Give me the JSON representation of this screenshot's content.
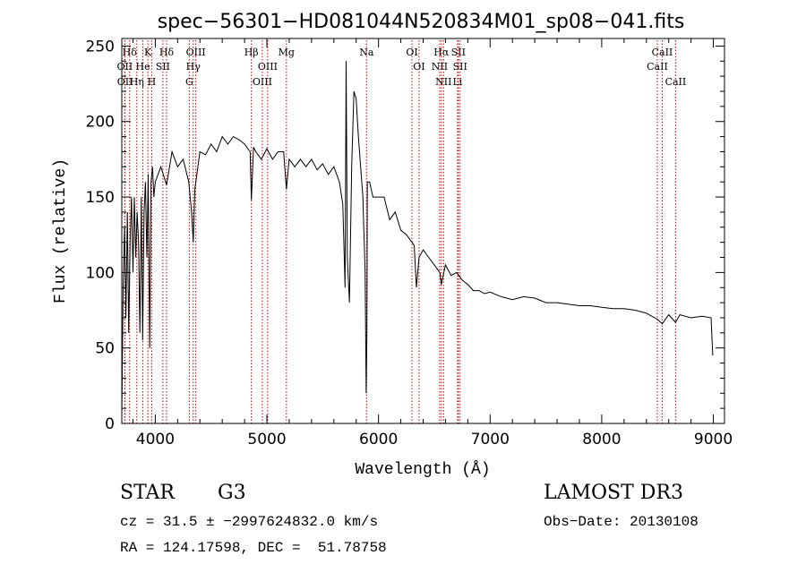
{
  "chart_data": {
    "type": "line",
    "title": "spec−56301−HD081044N520834M01_sp08−041.fits",
    "xlabel": "Wavelength (Å)",
    "ylabel": "Flux (relative)",
    "xlim": [
      3700,
      9100
    ],
    "ylim": [
      0,
      255
    ],
    "x_ticks": [
      4000,
      5000,
      6000,
      7000,
      8000,
      9000
    ],
    "y_ticks": [
      0,
      50,
      100,
      150,
      200,
      250
    ],
    "grid": false,
    "line_color": "#000000",
    "marker_color": "#cc0000",
    "series": [
      {
        "x": [
          3700,
          3712,
          3725,
          3737,
          3750,
          3762,
          3775,
          3787,
          3800,
          3812,
          3825,
          3837,
          3850,
          3862,
          3875,
          3887,
          3900,
          3912,
          3925,
          3937,
          3950,
          3962,
          3975,
          3987,
          4000,
          4050,
          4101,
          4150,
          4200,
          4250,
          4300,
          4325,
          4340,
          4355,
          4400,
          4450,
          4500,
          4550,
          4600,
          4650,
          4700,
          4750,
          4800,
          4850,
          4861,
          4880,
          4900,
          4950,
          5000,
          5050,
          5100,
          5150,
          5175,
          5200,
          5250,
          5300,
          5350,
          5400,
          5450,
          5500,
          5550,
          5600,
          5650,
          5680,
          5700,
          5710,
          5720,
          5740,
          5760,
          5780,
          5800,
          5820,
          5840,
          5860,
          5880,
          5890,
          5896,
          5900,
          5920,
          5950,
          6000,
          6050,
          6100,
          6150,
          6200,
          6250,
          6300,
          6320,
          6340,
          6363,
          6400,
          6450,
          6500,
          6550,
          6563,
          6600,
          6650,
          6700,
          6750,
          6800,
          6850,
          6900,
          6950,
          7000,
          7100,
          7200,
          7300,
          7400,
          7500,
          7600,
          7700,
          7800,
          7900,
          8000,
          8100,
          8200,
          8300,
          8400,
          8498,
          8542,
          8600,
          8662,
          8700,
          8800,
          8900,
          8980,
          8995
        ],
        "y": [
          5,
          90,
          130,
          70,
          140,
          60,
          120,
          150,
          100,
          150,
          110,
          140,
          120,
          60,
          150,
          55,
          140,
          160,
          110,
          165,
          50,
          160,
          170,
          150,
          160,
          170,
          158,
          180,
          170,
          175,
          160,
          140,
          120,
          155,
          180,
          178,
          185,
          180,
          190,
          185,
          190,
          188,
          185,
          180,
          148,
          183,
          180,
          175,
          182,
          175,
          180,
          180,
          155,
          175,
          170,
          175,
          170,
          175,
          168,
          172,
          165,
          170,
          160,
          145,
          90,
          240,
          110,
          80,
          170,
          220,
          215,
          190,
          170,
          150,
          100,
          20,
          60,
          160,
          160,
          150,
          150,
          150,
          135,
          140,
          128,
          125,
          120,
          118,
          90,
          110,
          115,
          110,
          105,
          100,
          92,
          105,
          98,
          100,
          95,
          92,
          88,
          88,
          86,
          87,
          84,
          82,
          84,
          83,
          80,
          80,
          79,
          78,
          78,
          77,
          76,
          76,
          75,
          73,
          69,
          66,
          72,
          67,
          72,
          70,
          71,
          70,
          45
        ]
      }
    ],
    "lines": [
      {
        "label": "Hδ",
        "x": 3770
      },
      {
        "label": "OII",
        "x": 3727
      },
      {
        "label": "OII",
        "x": 3729
      },
      {
        "label": "K",
        "x": 3934
      },
      {
        "label": "He",
        "x": 3889
      },
      {
        "label": "Hη",
        "x": 3835
      },
      {
        "label": "H",
        "x": 3968
      },
      {
        "label": "SII",
        "x": 4068
      },
      {
        "label": "Hδ",
        "x": 4101
      },
      {
        "label": "OIII",
        "x": 4363
      },
      {
        "label": "Hγ",
        "x": 4340
      },
      {
        "label": "G",
        "x": 4305
      },
      {
        "label": "Hβ",
        "x": 4861
      },
      {
        "label": "OIII",
        "x": 5007
      },
      {
        "label": "OIII",
        "x": 4959
      },
      {
        "label": "Mg",
        "x": 5175
      },
      {
        "label": "Na",
        "x": 5893
      },
      {
        "label": "OI",
        "x": 6300
      },
      {
        "label": "OI",
        "x": 6363
      },
      {
        "label": "Hα",
        "x": 6563
      },
      {
        "label": "SII",
        "x": 6716
      },
      {
        "label": "NII",
        "x": 6548
      },
      {
        "label": "NII",
        "x": 6583
      },
      {
        "label": "SII",
        "x": 6731
      },
      {
        "label": "Li",
        "x": 6708
      },
      {
        "label": "CaII",
        "x": 8542
      },
      {
        "label": "CaII",
        "x": 8498
      },
      {
        "label": "CaII",
        "x": 8662
      }
    ]
  },
  "info": {
    "class_label": "STAR",
    "subclass": "G3",
    "survey": "LAMOST DR3",
    "cz_text": "cz = 31.5 ± −2997624832.0 km/s",
    "obs_date": "Obs−Date: 20130108",
    "radec": "RA = 124.17598, DEC =  51.78758"
  }
}
